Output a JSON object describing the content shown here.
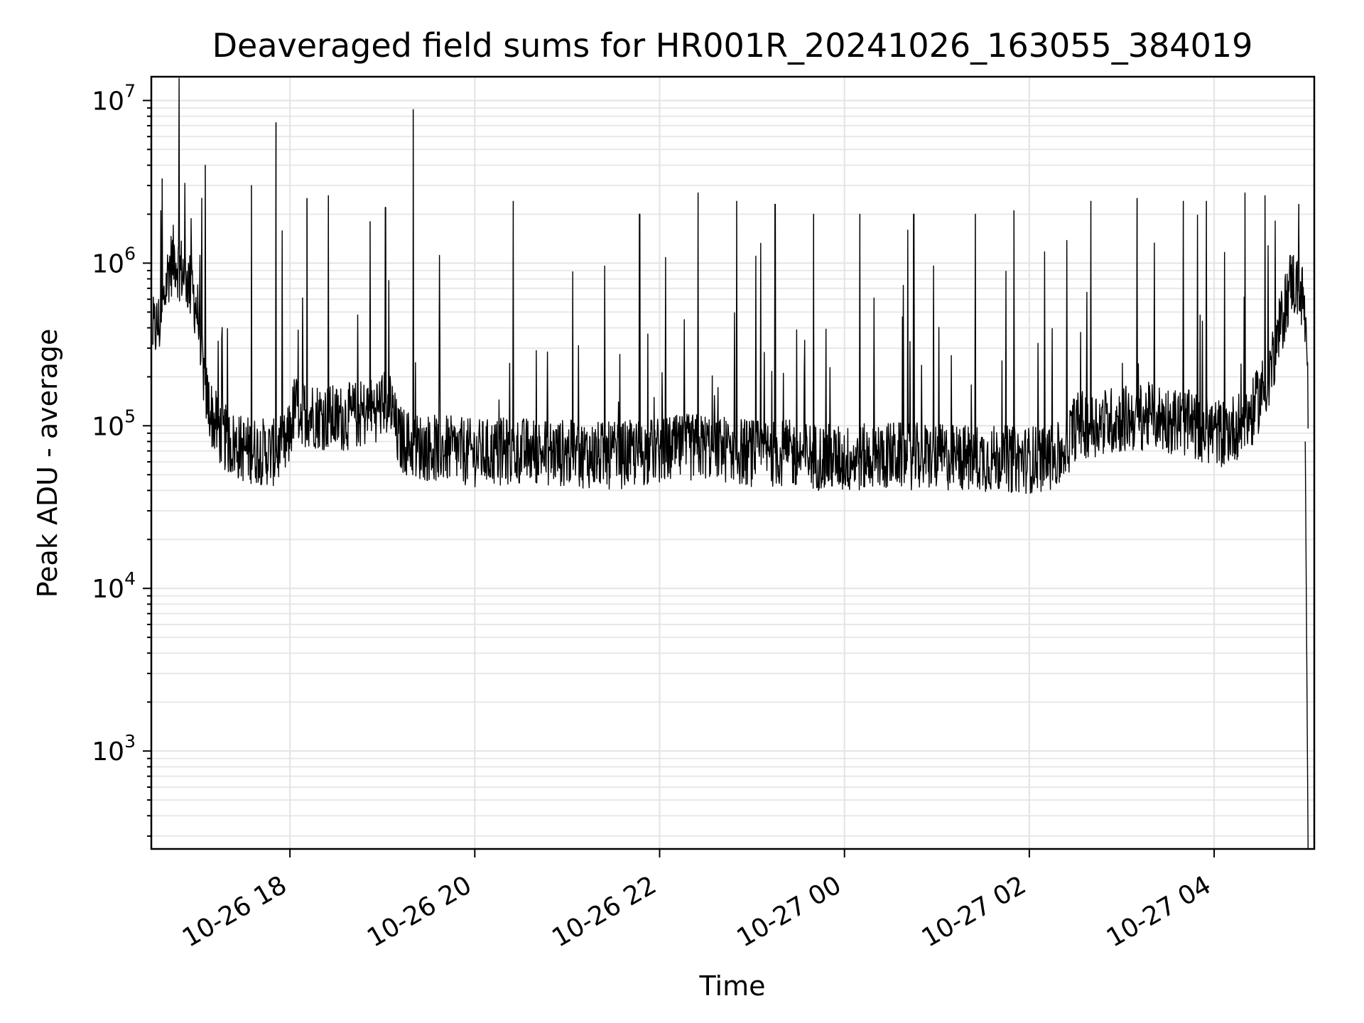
{
  "chart_data": {
    "type": "line",
    "title": "Deaveraged field sums for HR001R_20241026_163055_384019",
    "xlabel": "Time",
    "ylabel": "Peak ADU - average",
    "y_scale": "log",
    "xlim": [
      "2024-10-26 16:30",
      "2024-10-27 05:05"
    ],
    "ylim": [
      250,
      14000000
    ],
    "grid": true,
    "line_color": "#000000",
    "x_ticks": [
      {
        "value": "2024-10-26 18:00",
        "label": "10-26 18"
      },
      {
        "value": "2024-10-26 20:00",
        "label": "10-26 20"
      },
      {
        "value": "2024-10-26 22:00",
        "label": "10-26 22"
      },
      {
        "value": "2024-10-27 00:00",
        "label": "10-27 00"
      },
      {
        "value": "2024-10-27 02:00",
        "label": "10-27 02"
      },
      {
        "value": "2024-10-27 04:00",
        "label": "10-27 04"
      }
    ],
    "y_ticks": [
      {
        "value": 1000,
        "base": "10",
        "exp": "3"
      },
      {
        "value": 10000,
        "base": "10",
        "exp": "4"
      },
      {
        "value": 100000,
        "base": "10",
        "exp": "5"
      },
      {
        "value": 1000000,
        "base": "10",
        "exp": "6"
      },
      {
        "value": 10000000,
        "base": "10",
        "exp": "7"
      }
    ],
    "series": [
      {
        "x": [
          "2024-10-26 16:31",
          "2024-10-26 16:36",
          "2024-10-26 16:41",
          "2024-10-26 16:45",
          "2024-10-26 16:48",
          "2024-10-26 16:52",
          "2024-10-26 16:56",
          "2024-10-26 17:00",
          "2024-10-26 17:03",
          "2024-10-26 17:06",
          "2024-10-26 17:10",
          "2024-10-26 17:15",
          "2024-10-26 17:20",
          "2024-10-26 17:25",
          "2024-10-26 17:30",
          "2024-10-26 17:40",
          "2024-10-26 17:50",
          "2024-10-26 17:58",
          "2024-10-26 18:03",
          "2024-10-26 18:10",
          "2024-10-26 18:20",
          "2024-10-26 18:30",
          "2024-10-26 18:40",
          "2024-10-26 18:50",
          "2024-10-26 19:00",
          "2024-10-26 19:05",
          "2024-10-26 19:10",
          "2024-10-26 19:20",
          "2024-10-26 19:40",
          "2024-10-26 20:00",
          "2024-10-26 20:30",
          "2024-10-26 21:00",
          "2024-10-26 21:30",
          "2024-10-26 22:00",
          "2024-10-26 22:30",
          "2024-10-26 23:00",
          "2024-10-26 23:30",
          "2024-10-27 00:00",
          "2024-10-27 00:30",
          "2024-10-27 01:00",
          "2024-10-27 01:30",
          "2024-10-27 02:00",
          "2024-10-27 02:20",
          "2024-10-27 02:30",
          "2024-10-27 02:45",
          "2024-10-27 03:00",
          "2024-10-27 03:20",
          "2024-10-27 03:40",
          "2024-10-27 03:55",
          "2024-10-27 04:05",
          "2024-10-27 04:15",
          "2024-10-27 04:25",
          "2024-10-27 04:35",
          "2024-10-27 04:43",
          "2024-10-27 04:50",
          "2024-10-27 04:58",
          "2024-10-27 05:00",
          "2024-10-27 05:01"
        ],
        "y": [
          380000,
          430000,
          900000,
          1100000,
          950000,
          850000,
          700000,
          500000,
          250000,
          150000,
          110000,
          90000,
          80000,
          75000,
          72000,
          70000,
          68000,
          75000,
          130000,
          120000,
          115000,
          110000,
          115000,
          120000,
          135000,
          140000,
          85000,
          75000,
          72000,
          68000,
          70000,
          68000,
          65000,
          70000,
          75000,
          68000,
          67000,
          62000,
          66000,
          64000,
          63000,
          62000,
          65000,
          100000,
          105000,
          110000,
          115000,
          105000,
          95000,
          90000,
          100000,
          120000,
          200000,
          400000,
          800000,
          600000,
          300000,
          80000
        ]
      }
    ],
    "spikes": [
      {
        "x": "2024-10-26 16:37",
        "y": 3300000
      },
      {
        "x": "2024-10-26 17:05",
        "y": 4000000
      },
      {
        "x": "2024-10-26 17:35",
        "y": 3000000
      },
      {
        "x": "2024-10-26 17:51",
        "y": 7300000
      },
      {
        "x": "2024-10-26 18:11",
        "y": 2500000
      },
      {
        "x": "2024-10-26 18:25",
        "y": 2600000
      },
      {
        "x": "2024-10-26 18:52",
        "y": 1800000
      },
      {
        "x": "2024-10-26 19:02",
        "y": 2200000
      },
      {
        "x": "2024-10-26 19:20",
        "y": 8800000
      },
      {
        "x": "2024-10-26 20:25",
        "y": 2400000
      },
      {
        "x": "2024-10-26 21:47",
        "y": 2000000
      },
      {
        "x": "2024-10-26 22:25",
        "y": 2700000
      },
      {
        "x": "2024-10-26 22:50",
        "y": 2400000
      },
      {
        "x": "2024-10-26 23:15",
        "y": 2300000
      },
      {
        "x": "2024-10-26 23:40",
        "y": 2000000
      },
      {
        "x": "2024-10-27 00:10",
        "y": 2000000
      },
      {
        "x": "2024-10-27 00:45",
        "y": 2000000
      },
      {
        "x": "2024-10-27 01:25",
        "y": 2000000
      },
      {
        "x": "2024-10-27 01:50",
        "y": 2100000
      },
      {
        "x": "2024-10-27 02:40",
        "y": 2400000
      },
      {
        "x": "2024-10-27 03:10",
        "y": 2500000
      },
      {
        "x": "2024-10-27 03:40",
        "y": 2400000
      },
      {
        "x": "2024-10-27 03:55",
        "y": 2400000
      },
      {
        "x": "2024-10-27 04:20",
        "y": 2700000
      },
      {
        "x": "2024-10-27 04:33",
        "y": 2600000
      },
      {
        "x": "2024-10-27 04:55",
        "y": 2300000
      }
    ],
    "drop": {
      "x": "2024-10-27 05:01",
      "y": 250
    }
  }
}
